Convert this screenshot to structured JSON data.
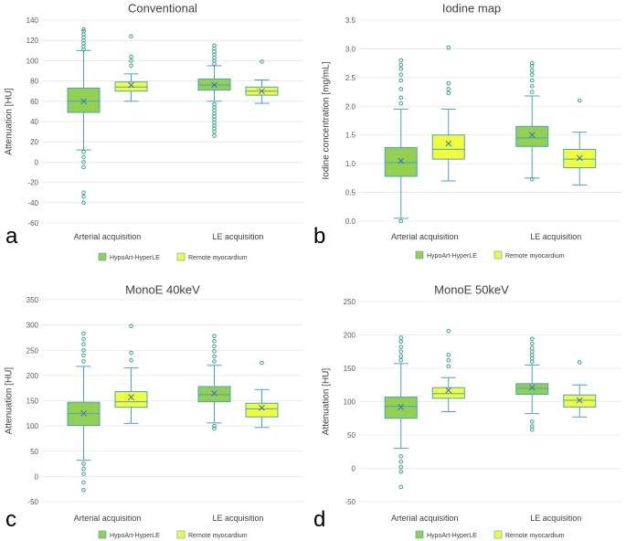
{
  "legend": {
    "series1": "HypoArt-HyperLE",
    "series2": "Remote myocardium",
    "color1": "#92d050",
    "color2": "#f0ff3c",
    "stroke": "#4aa0c8",
    "outlier_color": "#3aa58a",
    "mean_color": "#3a6bc8"
  },
  "chart_data": [
    {
      "type": "box",
      "panel": "a",
      "title": "Conventional",
      "ylabel": "Attenuation [HU]",
      "ylim": [
        -60,
        140
      ],
      "yticks": [
        -60,
        -40,
        -20,
        0,
        20,
        40,
        60,
        80,
        100,
        120,
        140
      ],
      "ytick_labels": [
        "-60",
        "-40",
        "-20",
        "0",
        "20",
        "40",
        "60",
        "80",
        "100",
        "120",
        "140"
      ],
      "categories": [
        "Arterial acquisition",
        "LE acquisition"
      ],
      "series": [
        {
          "name": "HypoArt-HyperLE",
          "boxes": [
            {
              "min": 12,
              "q1": 49,
              "median": 60,
              "q3": 73,
              "max": 110,
              "mean": 60,
              "outliers": [
                -40,
                -34,
                -30,
                -5,
                0,
                5,
                10,
                111,
                114,
                117,
                120,
                123,
                126,
                129,
                131
              ]
            },
            {
              "min": 60,
              "q1": 71,
              "median": 76,
              "q3": 82,
              "max": 95,
              "mean": 76,
              "outliers": [
                26,
                30,
                33,
                36,
                39,
                42,
                45,
                48,
                51,
                54,
                57,
                97,
                100,
                103,
                106,
                109,
                112,
                115
              ]
            }
          ]
        },
        {
          "name": "Remote myocardium",
          "boxes": [
            {
              "min": 60,
              "q1": 70,
              "median": 74,
              "q3": 79,
              "max": 87,
              "mean": 76,
              "outliers": [
                95,
                100,
                104,
                124
              ]
            },
            {
              "min": 58,
              "q1": 66,
              "median": 70,
              "q3": 74,
              "max": 81,
              "mean": 70,
              "outliers": [
                99
              ]
            }
          ]
        }
      ]
    },
    {
      "type": "box",
      "panel": "b",
      "title": "Iodine map",
      "ylabel": "Iodine concentration [mg/mL]",
      "ylim": [
        0,
        3.5
      ],
      "yticks": [
        0,
        0.5,
        1,
        1.5,
        2,
        2.5,
        3,
        3.5
      ],
      "ytick_labels": [
        "0.0",
        "0.5",
        "1.0",
        "1.5",
        "2.0",
        "2.5",
        "3.0",
        "3.5"
      ],
      "categories": [
        "Arterial acquisition",
        "LE acquisition"
      ],
      "series": [
        {
          "name": "HypoArt-HyperLE",
          "boxes": [
            {
              "min": 0.05,
              "q1": 0.78,
              "median": 1.02,
              "q3": 1.28,
              "max": 1.95,
              "mean": 1.05,
              "outliers": [
                0.0,
                2.05,
                2.15,
                2.3,
                2.45,
                2.55,
                2.65,
                2.72,
                2.8
              ]
            },
            {
              "min": 0.75,
              "q1": 1.3,
              "median": 1.45,
              "q3": 1.65,
              "max": 2.18,
              "mean": 1.5,
              "outliers": [
                0.73,
                2.25,
                2.35,
                2.45,
                2.55,
                2.62,
                2.7,
                2.75
              ]
            }
          ]
        },
        {
          "name": "Remote myocardium",
          "boxes": [
            {
              "min": 0.7,
              "q1": 1.08,
              "median": 1.25,
              "q3": 1.5,
              "max": 1.95,
              "mean": 1.35,
              "outliers": [
                2.23,
                2.3,
                2.4,
                3.02
              ]
            },
            {
              "min": 0.63,
              "q1": 0.93,
              "median": 1.08,
              "q3": 1.25,
              "max": 1.55,
              "mean": 1.1,
              "outliers": [
                2.1
              ]
            }
          ]
        }
      ]
    },
    {
      "type": "box",
      "panel": "c",
      "title": "MonoE 40keV",
      "ylabel": "Attenuation [HU]",
      "ylim": [
        -50,
        350
      ],
      "yticks": [
        -50,
        0,
        50,
        100,
        150,
        200,
        250,
        300,
        350
      ],
      "ytick_labels": [
        "-50",
        "0",
        "50",
        "100",
        "150",
        "200",
        "250",
        "300",
        "350"
      ],
      "categories": [
        "Arterial acquisition",
        "LE acquisition"
      ],
      "series": [
        {
          "name": "HypoArt-HyperLE",
          "boxes": [
            {
              "min": 32,
              "q1": 101,
              "median": 125,
              "q3": 147,
              "max": 218,
              "mean": 125,
              "outliers": [
                -27,
                -12,
                5,
                15,
                25,
                228,
                240,
                250,
                262,
                272,
                283
              ]
            },
            {
              "min": 106,
              "q1": 148,
              "median": 162,
              "q3": 178,
              "max": 220,
              "mean": 165,
              "outliers": [
                95,
                100,
                228,
                238,
                248,
                258,
                268,
                278
              ]
            }
          ]
        },
        {
          "name": "Remote myocardium",
          "boxes": [
            {
              "min": 105,
              "q1": 137,
              "median": 148,
              "q3": 168,
              "max": 215,
              "mean": 157,
              "outliers": [
                230,
                245,
                298
              ]
            },
            {
              "min": 97,
              "q1": 118,
              "median": 134,
              "q3": 145,
              "max": 172,
              "mean": 136,
              "outliers": [
                225
              ]
            }
          ]
        }
      ]
    },
    {
      "type": "box",
      "panel": "d",
      "title": "MonoE 50keV",
      "ylabel": "Attenuation [HU]",
      "ylim": [
        -50,
        250
      ],
      "yticks": [
        -50,
        0,
        50,
        100,
        150,
        200,
        250
      ],
      "ytick_labels": [
        "-50",
        "0",
        "50",
        "100",
        "150",
        "200",
        "250"
      ],
      "categories": [
        "Arterial acquisition",
        "LE acquisition"
      ],
      "series": [
        {
          "name": "HypoArt-HyperLE",
          "boxes": [
            {
              "min": 30,
              "q1": 75,
              "median": 93,
              "q3": 107,
              "max": 157,
              "mean": 92,
              "outliers": [
                -28,
                -5,
                2,
                10,
                18,
                162,
                168,
                175,
                182,
                190,
                196
              ]
            },
            {
              "min": 82,
              "q1": 111,
              "median": 120,
              "q3": 127,
              "max": 155,
              "mean": 121,
              "outliers": [
                58,
                63,
                70,
                160,
                165,
                170,
                175,
                180,
                187,
                194
              ]
            }
          ]
        },
        {
          "name": "Remote myocardium",
          "boxes": [
            {
              "min": 85,
              "q1": 105,
              "median": 112,
              "q3": 121,
              "max": 136,
              "mean": 117,
              "outliers": [
                153,
                162,
                170,
                206
              ]
            },
            {
              "min": 77,
              "q1": 92,
              "median": 102,
              "q3": 110,
              "max": 125,
              "mean": 102,
              "outliers": [
                159
              ]
            }
          ]
        }
      ]
    }
  ]
}
